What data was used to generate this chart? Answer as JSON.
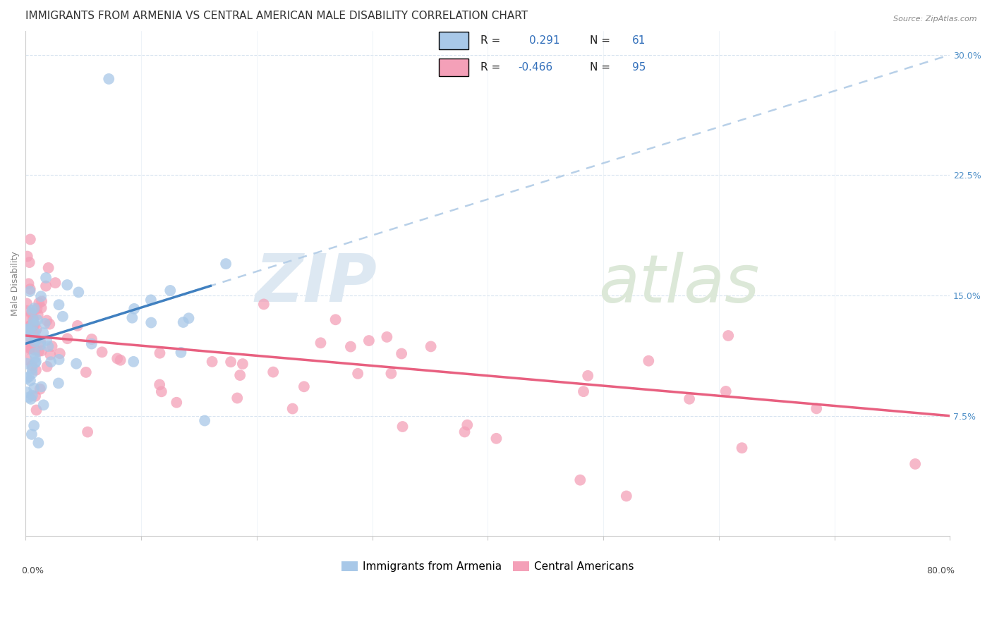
{
  "title": "IMMIGRANTS FROM ARMENIA VS CENTRAL AMERICAN MALE DISABILITY CORRELATION CHART",
  "source": "Source: ZipAtlas.com",
  "ylabel": "Male Disability",
  "xmin": 0.0,
  "xmax": 0.8,
  "ymin": 0.0,
  "ymax": 0.315,
  "R_armenia": 0.291,
  "N_armenia": 61,
  "R_central": -0.466,
  "N_central": 95,
  "color_armenia": "#a8c8e8",
  "color_central": "#f4a0b8",
  "color_armenia_line": "#4080c0",
  "color_central_line": "#e86080",
  "color_dashed": "#b8d0e8",
  "background_color": "white",
  "title_fontsize": 11,
  "axis_label_fontsize": 9,
  "tick_fontsize": 9,
  "legend_fontsize": 11
}
